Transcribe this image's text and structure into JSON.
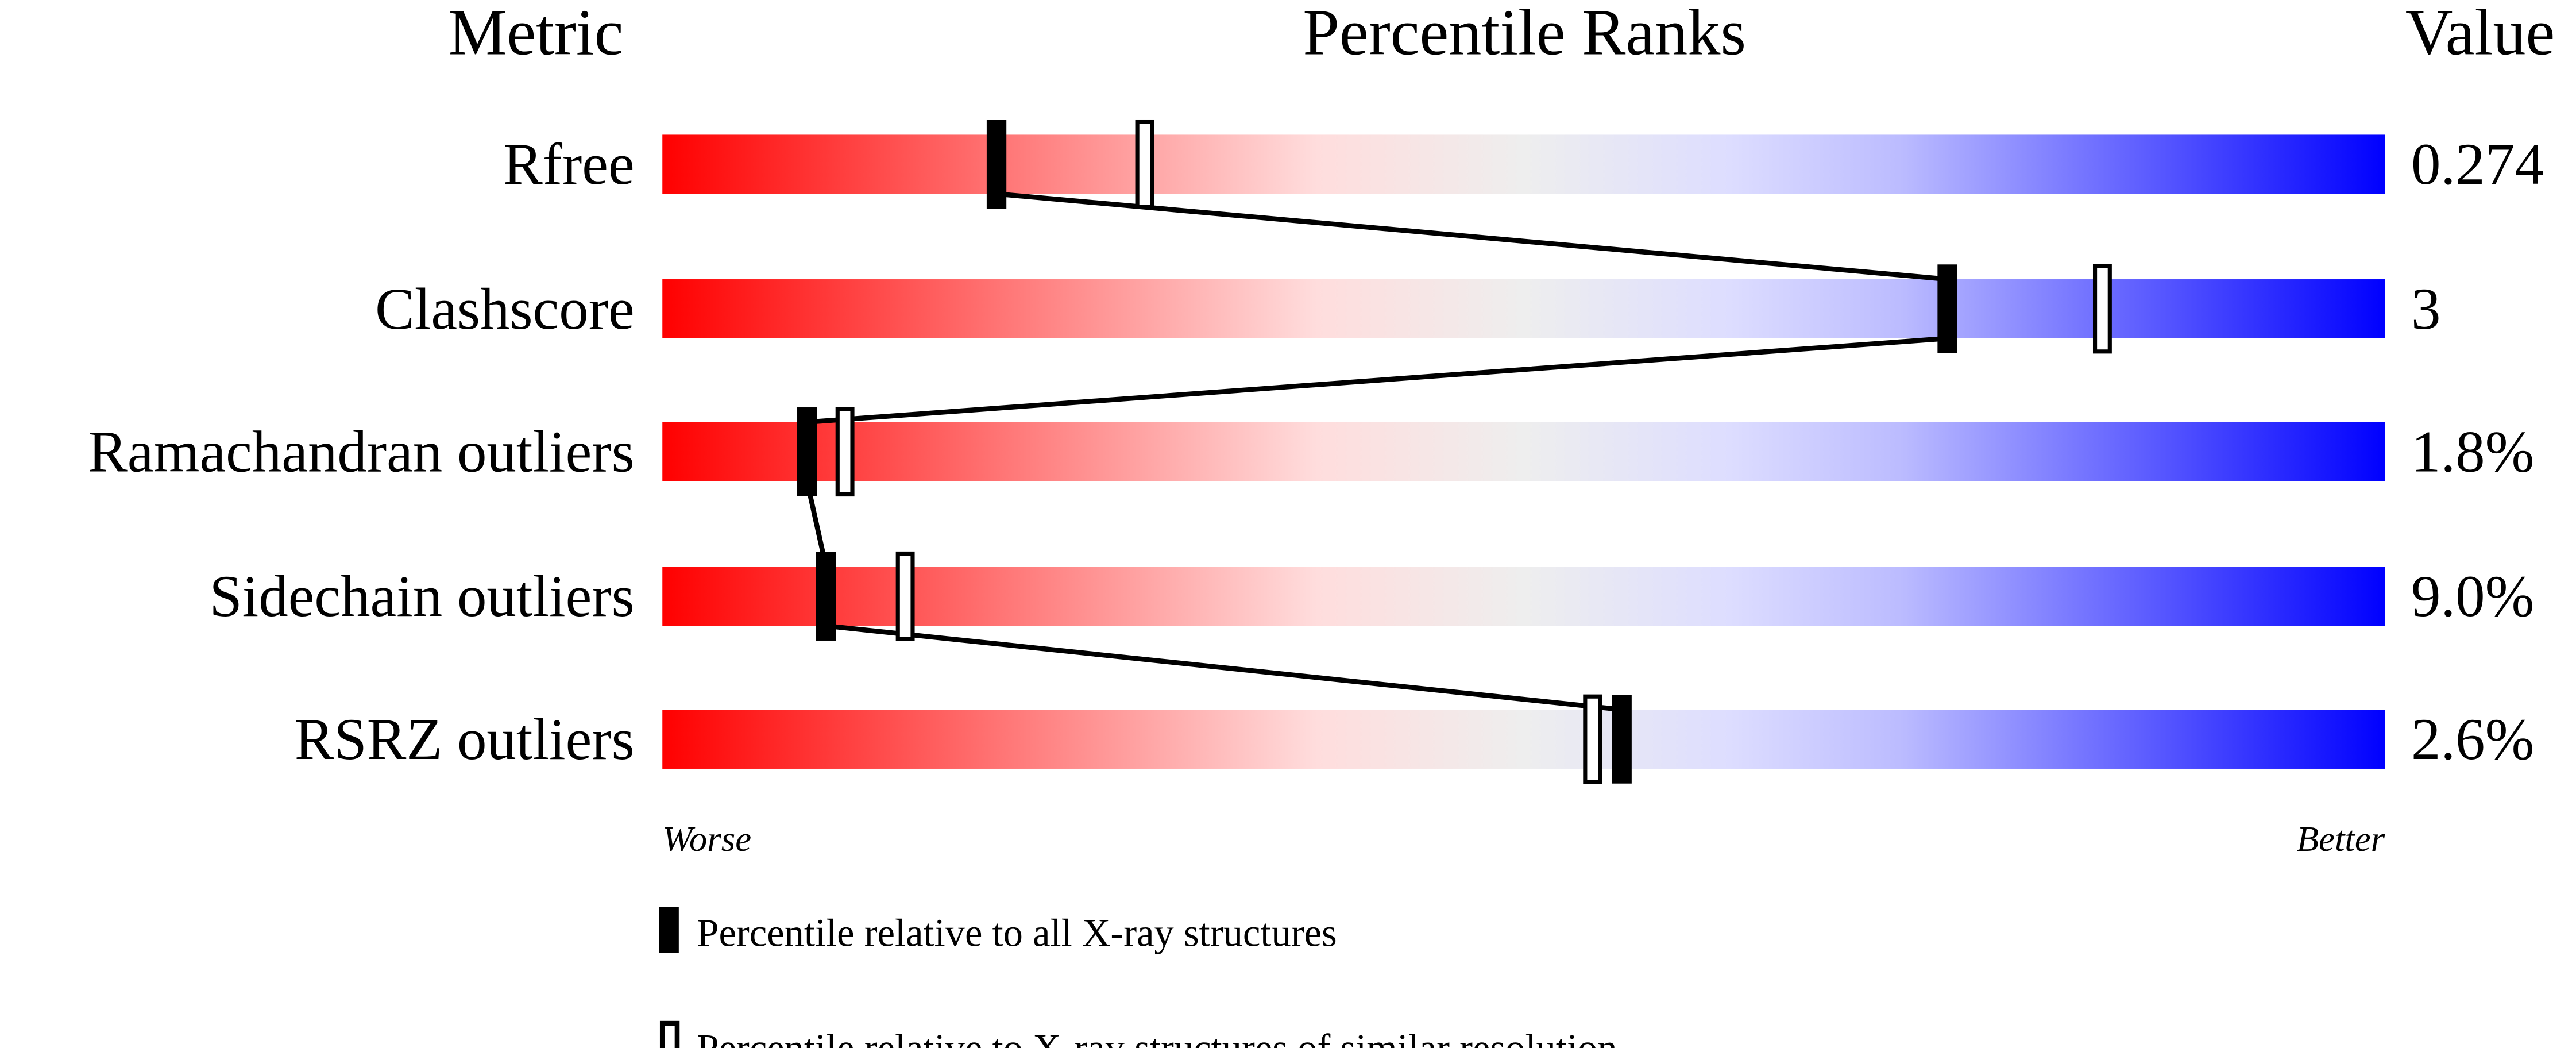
{
  "chart_data": {
    "type": "percentile-ranks",
    "headers": {
      "metric": "Metric",
      "ranks": "Percentile Ranks",
      "value": "Value"
    },
    "xlim": [
      0,
      100
    ],
    "axis_labels": {
      "left": "Worse",
      "right": "Better"
    },
    "gradient_colors": [
      "#ff0000",
      "#ff7777",
      "#ffdddd",
      "#eeeeee",
      "#ddddff",
      "#bbbbff",
      "#0000ff"
    ],
    "metrics": [
      {
        "name": "Rfree",
        "value": "0.274",
        "percentile_all": 19.4,
        "percentile_similar": 28.0
      },
      {
        "name": "Clashscore",
        "value": "3",
        "percentile_all": 74.6,
        "percentile_similar": 83.6
      },
      {
        "name": "Ramachandran outliers",
        "value": "1.8%",
        "percentile_all": 8.4,
        "percentile_similar": 10.6
      },
      {
        "name": "Sidechain outliers",
        "value": "9.0%",
        "percentile_all": 9.5,
        "percentile_similar": 14.1
      },
      {
        "name": "RSRZ outliers",
        "value": "2.6%",
        "percentile_all": 55.7,
        "percentile_similar": 54.0
      }
    ],
    "legend": [
      {
        "marker": "filled",
        "label": "Percentile relative to all X-ray structures"
      },
      {
        "marker": "open",
        "label": "Percentile relative to X-ray structures of similar resolution"
      }
    ]
  }
}
